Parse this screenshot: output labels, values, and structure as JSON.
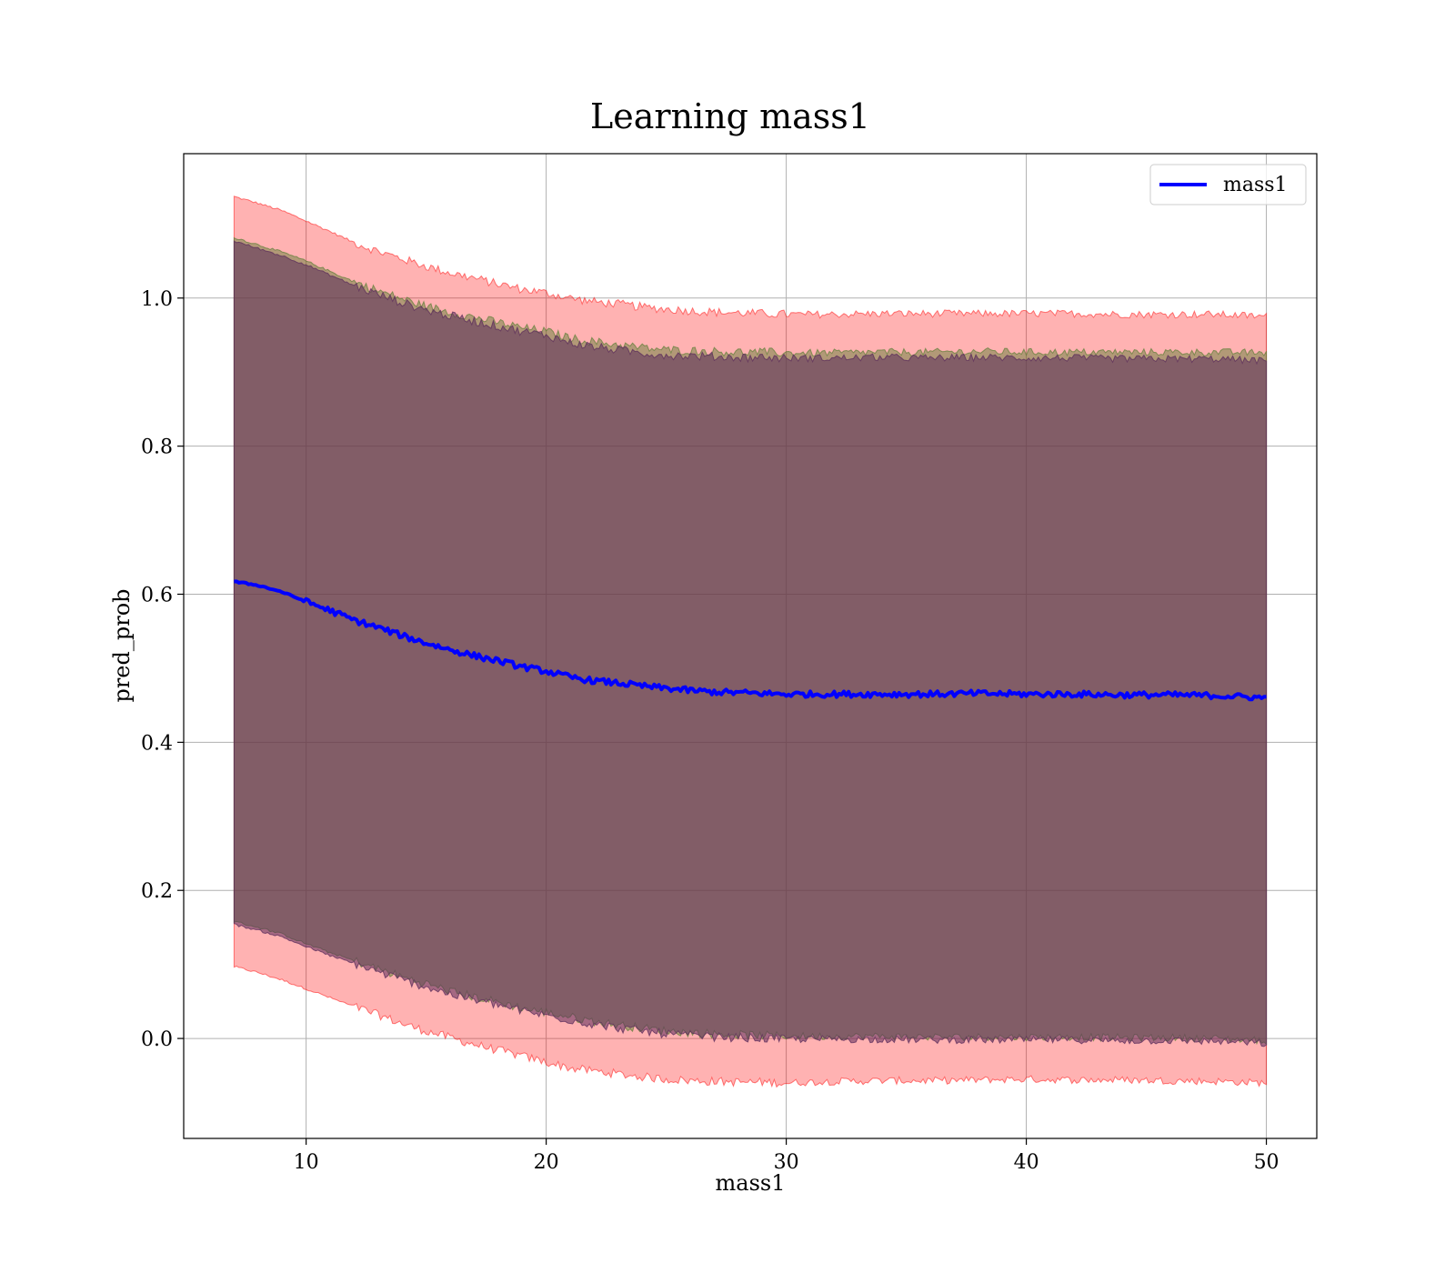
{
  "chart_data": {
    "type": "line",
    "title": "Learning mass1",
    "xlabel": "mass1",
    "ylabel": "pred_prob",
    "xlim": [
      4.9,
      52.1
    ],
    "ylim": [
      -0.135,
      1.195
    ],
    "xticks": [
      10,
      20,
      30,
      40,
      50
    ],
    "xtick_labels": [
      "10",
      "20",
      "30",
      "40",
      "50"
    ],
    "yticks": [
      0.0,
      0.2,
      0.4,
      0.6,
      0.8,
      1.0
    ],
    "ytick_labels": [
      "0.0",
      "0.2",
      "0.4",
      "0.6",
      "0.8",
      "1.0"
    ],
    "grid": true,
    "legend": {
      "position": "upper right",
      "entries": [
        "mass1"
      ]
    },
    "series": [
      {
        "name": "mass1",
        "color": "#0000ff",
        "x": [
          7,
          8,
          9,
          10,
          11,
          12,
          13,
          14,
          15,
          16,
          17,
          18,
          19,
          20,
          21,
          22,
          23,
          24,
          25,
          26,
          27,
          28,
          29,
          30,
          32,
          34,
          36,
          38,
          40,
          42,
          44,
          46,
          48,
          50
        ],
        "y": [
          0.617,
          0.612,
          0.603,
          0.59,
          0.578,
          0.565,
          0.555,
          0.544,
          0.534,
          0.525,
          0.517,
          0.51,
          0.502,
          0.496,
          0.488,
          0.483,
          0.48,
          0.476,
          0.473,
          0.47,
          0.468,
          0.467,
          0.466,
          0.465,
          0.465,
          0.465,
          0.465,
          0.466,
          0.465,
          0.465,
          0.464,
          0.464,
          0.463,
          0.46
        ]
      }
    ],
    "bands": [
      {
        "color": "#ff0000",
        "opacity": 0.3,
        "x": [
          7,
          8,
          9,
          10,
          11,
          12,
          13,
          14,
          15,
          16,
          17,
          18,
          19,
          20,
          21,
          22,
          23,
          24,
          25,
          26,
          27,
          28,
          29,
          30,
          32,
          34,
          36,
          38,
          40,
          42,
          44,
          46,
          48,
          50
        ],
        "upper": [
          1.137,
          1.128,
          1.118,
          1.104,
          1.09,
          1.075,
          1.063,
          1.053,
          1.043,
          1.034,
          1.027,
          1.019,
          1.012,
          1.007,
          1.0,
          0.995,
          0.992,
          0.988,
          0.985,
          0.983,
          0.981,
          0.98,
          0.979,
          0.978,
          0.978,
          0.979,
          0.979,
          0.979,
          0.979,
          0.979,
          0.978,
          0.978,
          0.978,
          0.975
        ],
        "lower": [
          0.097,
          0.089,
          0.079,
          0.067,
          0.055,
          0.043,
          0.032,
          0.02,
          0.01,
          0.001,
          -0.008,
          -0.016,
          -0.024,
          -0.032,
          -0.04,
          -0.044,
          -0.048,
          -0.052,
          -0.055,
          -0.057,
          -0.058,
          -0.059,
          -0.059,
          -0.06,
          -0.058,
          -0.057,
          -0.057,
          -0.056,
          -0.055,
          -0.056,
          -0.056,
          -0.057,
          -0.058,
          -0.06
        ]
      },
      {
        "color": "#557b2f",
        "opacity": 0.45,
        "x": [
          7,
          8,
          9,
          10,
          11,
          12,
          13,
          14,
          15,
          16,
          17,
          18,
          19,
          20,
          21,
          22,
          23,
          24,
          25,
          26,
          27,
          28,
          29,
          30,
          32,
          34,
          36,
          38,
          40,
          42,
          44,
          46,
          48,
          50
        ],
        "upper": [
          1.082,
          1.072,
          1.062,
          1.05,
          1.036,
          1.022,
          1.01,
          0.999,
          0.989,
          0.981,
          0.974,
          0.967,
          0.96,
          0.955,
          0.946,
          0.941,
          0.937,
          0.933,
          0.93,
          0.929,
          0.928,
          0.927,
          0.927,
          0.926,
          0.926,
          0.927,
          0.927,
          0.928,
          0.927,
          0.927,
          0.927,
          0.927,
          0.927,
          0.926
        ],
        "lower": [
          0.158,
          0.15,
          0.141,
          0.128,
          0.116,
          0.105,
          0.094,
          0.083,
          0.074,
          0.064,
          0.056,
          0.049,
          0.041,
          0.035,
          0.029,
          0.023,
          0.018,
          0.014,
          0.01,
          0.008,
          0.006,
          0.005,
          0.004,
          0.003,
          0.003,
          0.003,
          0.002,
          0.002,
          0.002,
          0.002,
          0.001,
          0.001,
          0.0,
          -0.003
        ]
      },
      {
        "color": "#5b2c5b",
        "opacity": 0.55,
        "x": [
          7,
          8,
          9,
          10,
          11,
          12,
          13,
          14,
          15,
          16,
          17,
          18,
          19,
          20,
          21,
          22,
          23,
          24,
          25,
          26,
          27,
          28,
          29,
          30,
          32,
          34,
          36,
          38,
          40,
          42,
          44,
          46,
          48,
          50
        ],
        "upper": [
          1.077,
          1.067,
          1.057,
          1.045,
          1.031,
          1.017,
          1.005,
          0.994,
          0.984,
          0.976,
          0.969,
          0.962,
          0.955,
          0.95,
          0.94,
          0.934,
          0.93,
          0.926,
          0.923,
          0.922,
          0.921,
          0.92,
          0.92,
          0.919,
          0.919,
          0.92,
          0.919,
          0.92,
          0.919,
          0.919,
          0.918,
          0.918,
          0.918,
          0.915
        ],
        "lower": [
          0.154,
          0.146,
          0.137,
          0.124,
          0.112,
          0.101,
          0.09,
          0.079,
          0.07,
          0.06,
          0.052,
          0.045,
          0.037,
          0.031,
          0.025,
          0.019,
          0.014,
          0.01,
          0.006,
          0.004,
          0.002,
          0.001,
          0.0,
          -0.001,
          -0.001,
          -0.001,
          -0.002,
          -0.002,
          -0.002,
          -0.002,
          -0.003,
          -0.003,
          -0.004,
          -0.007
        ]
      }
    ]
  }
}
